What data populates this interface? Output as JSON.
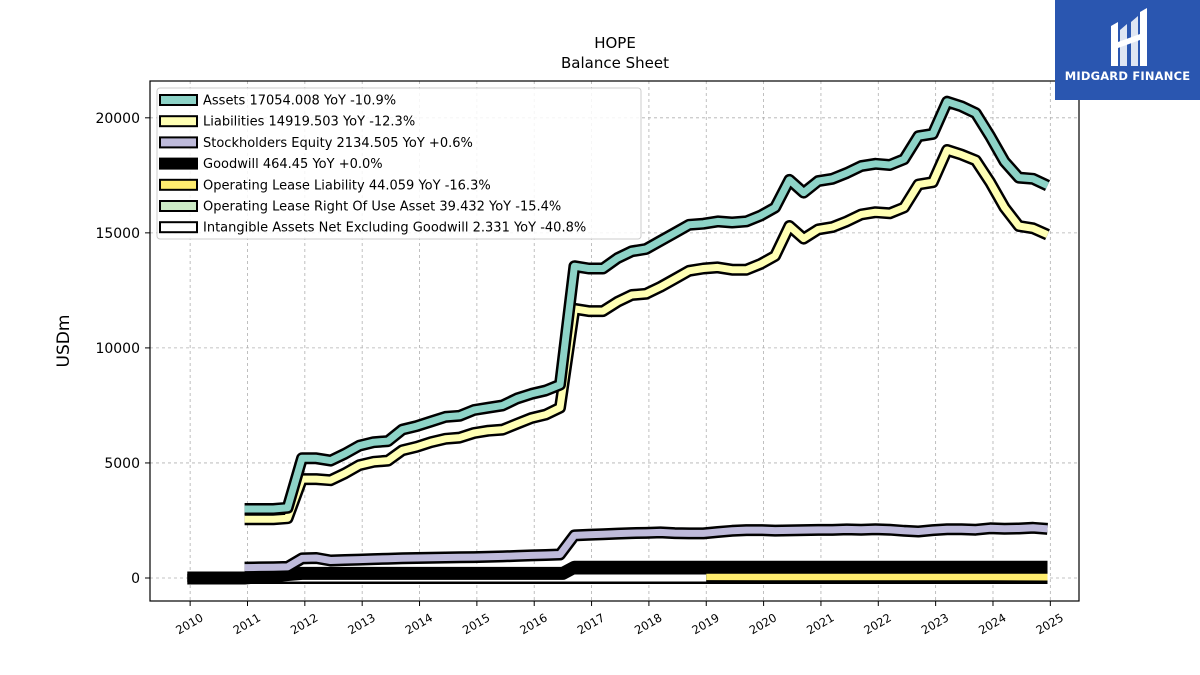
{
  "logo": {
    "name": "MIDGARD FINANCE"
  },
  "chart_data": {
    "type": "line",
    "title": "HOPE",
    "subtitle": "Balance  Sheet",
    "ylabel": "USDm",
    "xlabel": "",
    "xlim": [
      2009.3,
      2025.5
    ],
    "ylim": [
      -1000,
      21600
    ],
    "x_ticks": [
      "2010",
      "2011",
      "2012",
      "2013",
      "2014",
      "2015",
      "2016",
      "2017",
      "2018",
      "2019",
      "2020",
      "2021",
      "2022",
      "2023",
      "2024",
      "2025"
    ],
    "y_ticks": [
      0,
      5000,
      10000,
      15000,
      20000
    ],
    "grid": true,
    "legend_position": "top-left",
    "series": [
      {
        "name": "Assets",
        "legend_label": "Assets  17054.008 YoY -10.9%",
        "color": "#8dd3c7",
        "x": [
          2010.95,
          2011.2,
          2011.45,
          2011.7,
          2011.95,
          2012.2,
          2012.45,
          2012.7,
          2012.95,
          2013.2,
          2013.45,
          2013.7,
          2013.95,
          2014.2,
          2014.45,
          2014.7,
          2014.95,
          2015.2,
          2015.45,
          2015.7,
          2015.95,
          2016.2,
          2016.45,
          2016.7,
          2016.95,
          2017.2,
          2017.45,
          2017.7,
          2017.95,
          2018.2,
          2018.45,
          2018.7,
          2018.95,
          2019.2,
          2019.45,
          2019.7,
          2019.95,
          2020.2,
          2020.45,
          2020.7,
          2020.95,
          2021.2,
          2021.45,
          2021.7,
          2021.95,
          2022.2,
          2022.45,
          2022.7,
          2022.95,
          2023.2,
          2023.45,
          2023.7,
          2023.95,
          2024.2,
          2024.45,
          2024.7,
          2024.95
        ],
        "y": [
          3000,
          3000,
          3000,
          3050,
          5200,
          5200,
          5100,
          5400,
          5750,
          5900,
          5950,
          6450,
          6600,
          6800,
          7000,
          7050,
          7300,
          7400,
          7500,
          7800,
          8000,
          8150,
          8400,
          13550,
          13450,
          13450,
          13900,
          14200,
          14300,
          14650,
          15000,
          15350,
          15400,
          15500,
          15450,
          15500,
          15750,
          16100,
          17300,
          16750,
          17250,
          17350,
          17600,
          17900,
          18000,
          17950,
          18200,
          19200,
          19300,
          20700,
          20500,
          20200,
          19200,
          18100,
          17400,
          17350,
          17054
        ]
      },
      {
        "name": "Liabilities",
        "legend_label": "Liabilities  14919.503 YoY -12.3%",
        "color": "#ffffb3",
        "x": [
          2010.95,
          2011.2,
          2011.45,
          2011.7,
          2011.95,
          2012.2,
          2012.45,
          2012.7,
          2012.95,
          2013.2,
          2013.45,
          2013.7,
          2013.95,
          2014.2,
          2014.45,
          2014.7,
          2014.95,
          2015.2,
          2015.45,
          2015.7,
          2015.95,
          2016.2,
          2016.45,
          2016.7,
          2016.95,
          2017.2,
          2017.45,
          2017.7,
          2017.95,
          2018.2,
          2018.45,
          2018.7,
          2018.95,
          2019.2,
          2019.45,
          2019.7,
          2019.95,
          2020.2,
          2020.45,
          2020.7,
          2020.95,
          2021.2,
          2021.45,
          2021.7,
          2021.95,
          2022.2,
          2022.45,
          2022.7,
          2022.95,
          2023.2,
          2023.45,
          2023.7,
          2023.95,
          2024.2,
          2024.45,
          2024.7,
          2024.95
        ],
        "y": [
          2550,
          2550,
          2550,
          2600,
          4300,
          4300,
          4250,
          4550,
          4900,
          5050,
          5100,
          5550,
          5700,
          5900,
          6050,
          6100,
          6300,
          6400,
          6450,
          6700,
          6950,
          7100,
          7400,
          11700,
          11600,
          11600,
          12000,
          12300,
          12350,
          12650,
          13000,
          13350,
          13450,
          13500,
          13400,
          13400,
          13650,
          14000,
          15300,
          14750,
          15150,
          15250,
          15500,
          15800,
          15900,
          15850,
          16100,
          17100,
          17200,
          18600,
          18400,
          18150,
          17200,
          16100,
          15300,
          15200,
          14920
        ]
      },
      {
        "name": "Stockholders Equity",
        "legend_label": "Stockholders Equity  2134.505 YoY +0.6%",
        "color": "#bebada",
        "x": [
          2010.95,
          2011.2,
          2011.45,
          2011.7,
          2011.95,
          2012.2,
          2012.45,
          2012.7,
          2012.95,
          2013.2,
          2013.45,
          2013.7,
          2013.95,
          2014.2,
          2014.45,
          2014.7,
          2014.95,
          2015.2,
          2015.45,
          2015.7,
          2015.95,
          2016.2,
          2016.45,
          2016.7,
          2016.95,
          2017.2,
          2017.45,
          2017.7,
          2017.95,
          2018.2,
          2018.45,
          2018.7,
          2018.95,
          2019.2,
          2019.45,
          2019.7,
          2019.95,
          2020.2,
          2020.45,
          2020.7,
          2020.95,
          2021.2,
          2021.45,
          2021.7,
          2021.95,
          2022.2,
          2022.45,
          2022.7,
          2022.95,
          2023.2,
          2023.45,
          2023.7,
          2023.95,
          2024.2,
          2024.45,
          2024.7,
          2024.95
        ],
        "y": [
          450,
          460,
          470,
          480,
          850,
          870,
          760,
          780,
          800,
          820,
          840,
          860,
          870,
          880,
          890,
          900,
          910,
          920,
          940,
          960,
          980,
          1000,
          1020,
          1850,
          1880,
          1900,
          1930,
          1950,
          1960,
          1980,
          1950,
          1940,
          1940,
          2000,
          2050,
          2080,
          2080,
          2060,
          2070,
          2080,
          2090,
          2090,
          2110,
          2100,
          2120,
          2100,
          2050,
          2020,
          2080,
          2120,
          2120,
          2100,
          2160,
          2140,
          2150,
          2180,
          2134
        ]
      },
      {
        "name": "Goodwill",
        "legend_label": "Goodwill  464.45 YoY +0.0%",
        "color": "#000000",
        "x": [
          2009.95,
          2010.95,
          2011.95,
          2016.5,
          2016.7,
          2024.95
        ],
        "y": [
          0,
          0,
          200,
          200,
          464,
          464
        ]
      },
      {
        "name": "Operating Lease Liability",
        "legend_label": "Operating Lease Liability  44.059 YoY -16.3%",
        "color": "#ffed6f",
        "x": [
          2019.0,
          2020.0,
          2021.0,
          2022.0,
          2023.0,
          2024.0,
          2024.95
        ],
        "y": [
          60,
          58,
          56,
          54,
          52,
          50,
          44
        ]
      },
      {
        "name": "Operating Lease Right Of Use Asset",
        "legend_label": "Operating Lease Right Of Use Asset  39.432 YoY -15.4%",
        "color": "#ccebc5",
        "x": [
          2019.0,
          2020.0,
          2021.0,
          2022.0,
          2023.0,
          2024.0,
          2024.95
        ],
        "y": [
          55,
          52,
          50,
          48,
          46,
          45,
          39
        ]
      },
      {
        "name": "Intangible Assets Net Excluding Goodwill",
        "legend_label": "Intangible Assets Net Excluding Goodwill  2.331 YoY -40.8%",
        "color": "#ffffff",
        "x": [
          2010.95,
          2016.7,
          2024.95
        ],
        "y": [
          0,
          0,
          0
        ]
      }
    ]
  }
}
